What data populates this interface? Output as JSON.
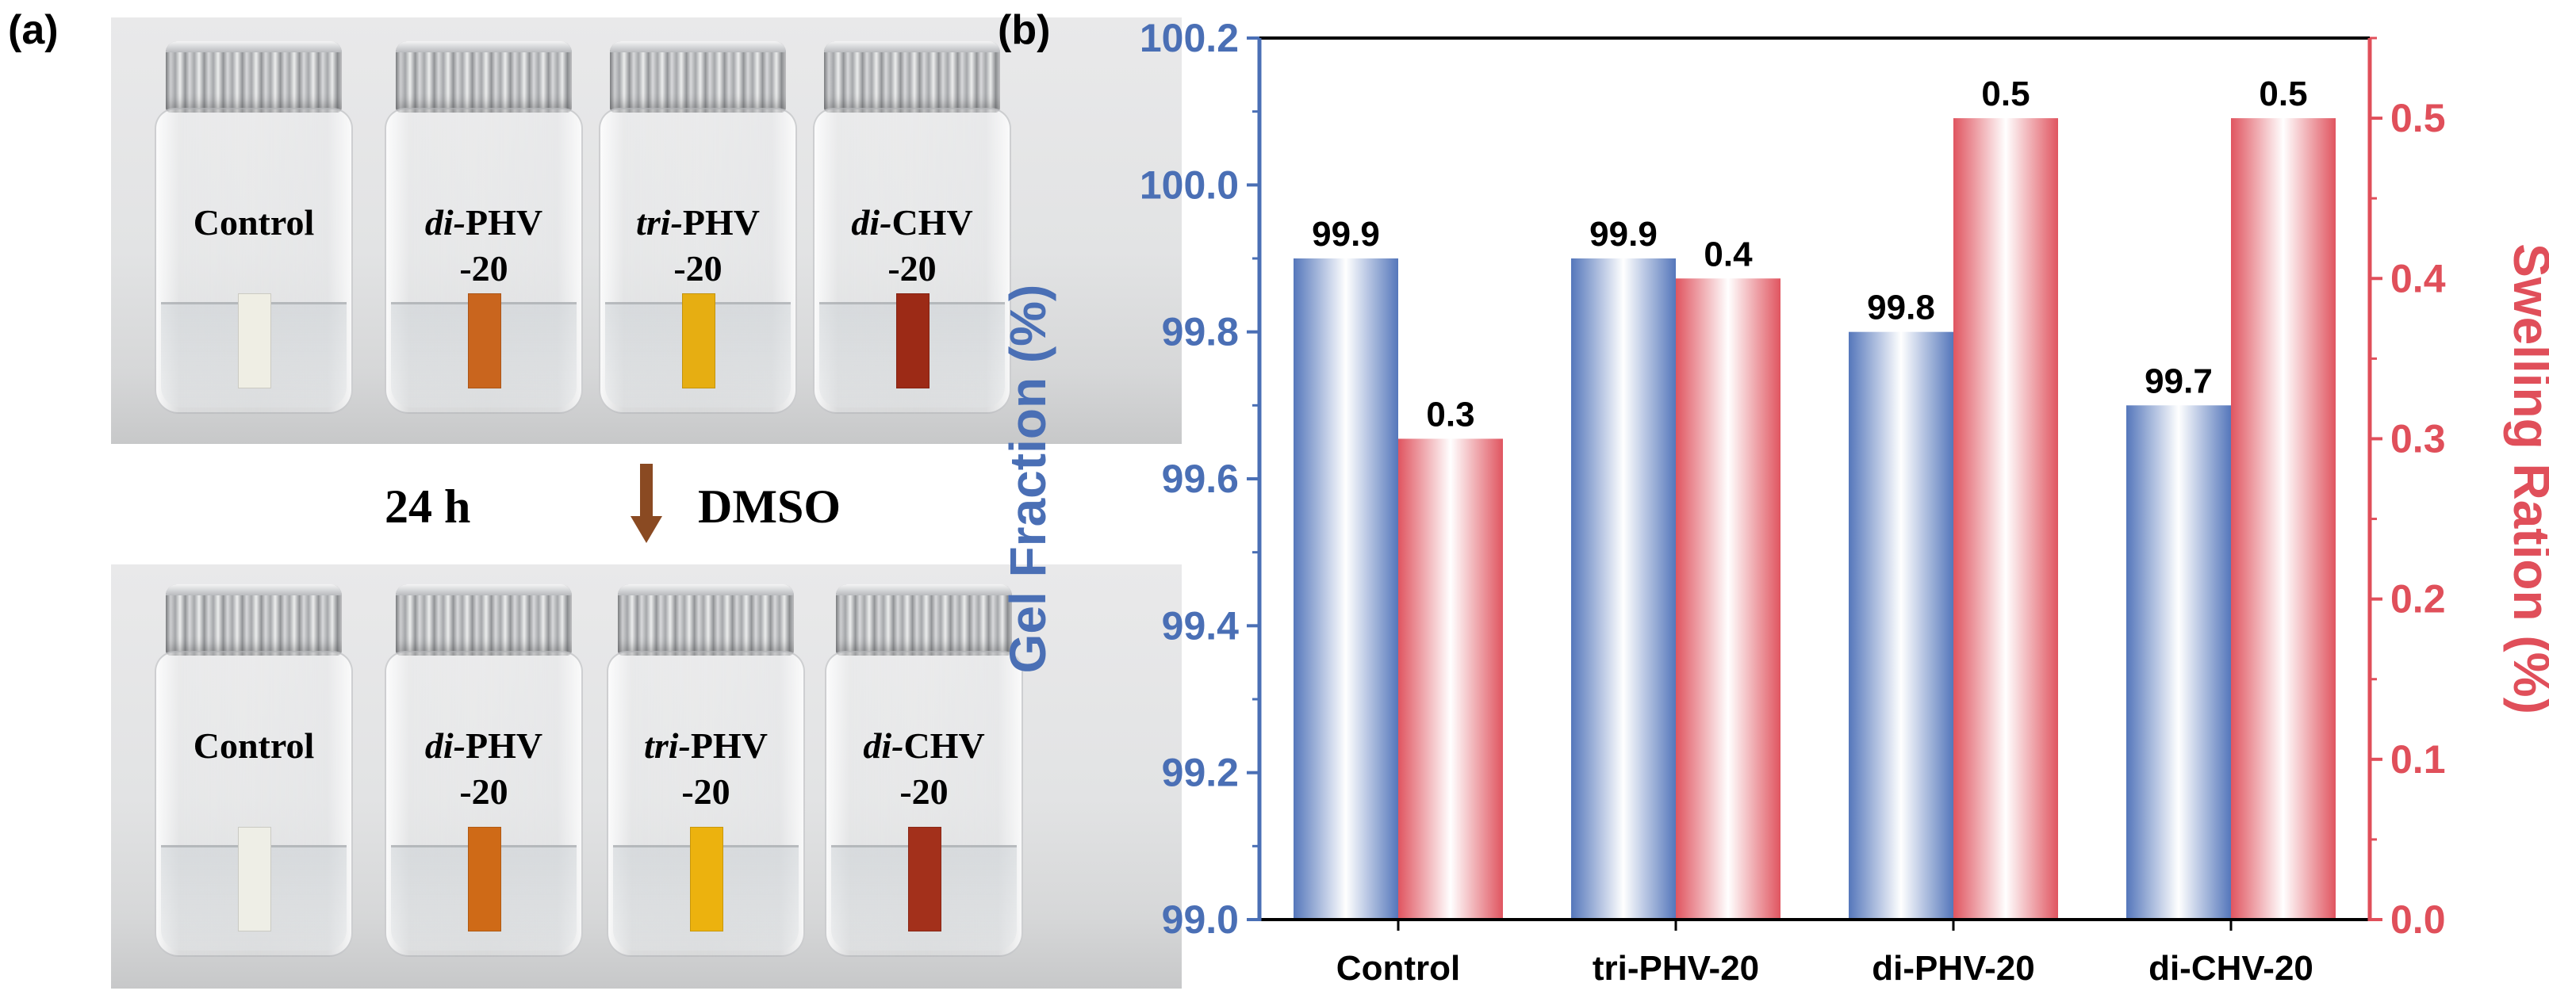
{
  "panel_a": {
    "label": "(a)",
    "top_vials": [
      {
        "name": "Control",
        "prefix": "",
        "suffix": "",
        "strip_color": "#efeee4"
      },
      {
        "name": "PHV",
        "prefix": "di-",
        "suffix": "-20",
        "strip_color": "#c9651e"
      },
      {
        "name": "PHV",
        "prefix": "tri-",
        "suffix": "-20",
        "strip_color": "#e6ae12"
      },
      {
        "name": "CHV",
        "prefix": "di-",
        "suffix": "-20",
        "strip_color": "#9c2a16"
      }
    ],
    "bottom_vials": [
      {
        "name": "Control",
        "prefix": "",
        "suffix": "",
        "strip_color": "#eeeee6"
      },
      {
        "name": "PHV",
        "prefix": "di-",
        "suffix": "-20",
        "strip_color": "#cf6a17"
      },
      {
        "name": "PHV",
        "prefix": "tri-",
        "suffix": "-20",
        "strip_color": "#ecb20e"
      },
      {
        "name": "CHV",
        "prefix": "di-",
        "suffix": "-20",
        "strip_color": "#a3301b"
      }
    ],
    "condition_time": "24 h",
    "condition_solvent": "DMSO",
    "arrow_color": "#8a4a22"
  },
  "panel_b": {
    "label": "(b)"
  },
  "chart_data": {
    "type": "bar",
    "categories": [
      "Control",
      "tri-PHV-20",
      "di-PHV-20",
      "di-CHV-20"
    ],
    "series": [
      {
        "name": "Gel Fraction",
        "axis": "left",
        "values": [
          99.9,
          99.9,
          99.8,
          99.7
        ],
        "labels": [
          "99.9",
          "99.9",
          "99.8",
          "99.7"
        ],
        "color": "#5577bb"
      },
      {
        "name": "Swelling Ration",
        "axis": "right",
        "values": [
          0.3,
          0.4,
          0.5,
          0.5
        ],
        "labels": [
          "0.3",
          "0.4",
          "0.5",
          "0.5"
        ],
        "color": "#e05560"
      }
    ],
    "ylabel_left": "Gel Fraction (%)",
    "ylabel_right": "Swelling Ration (%)",
    "ylim_left": [
      99.0,
      100.2
    ],
    "yticks_left": [
      "99.0",
      "99.2",
      "99.4",
      "99.6",
      "99.8",
      "100.0",
      "100.2"
    ],
    "ylim_right": [
      0.0,
      0.55
    ],
    "yticks_right": [
      "0.0",
      "0.1",
      "0.2",
      "0.3",
      "0.4",
      "0.5"
    ],
    "left_axis_color": "#4a6fb5",
    "right_axis_color": "#e04f5a"
  }
}
